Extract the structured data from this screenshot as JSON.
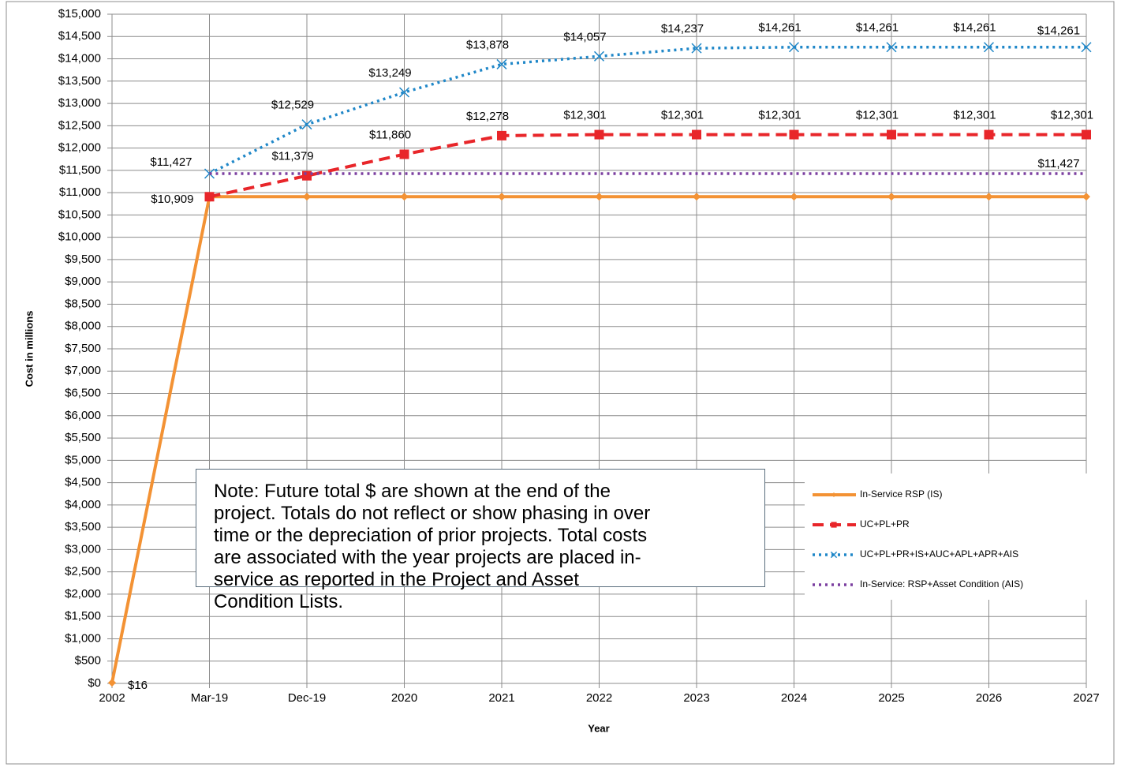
{
  "chart_data": {
    "type": "line",
    "y_label": "Cost in millions",
    "x_label": "Year",
    "categories": [
      "2002",
      "Mar-19",
      "Dec-19",
      "2020",
      "2021",
      "2022",
      "2023",
      "2024",
      "2025",
      "2026",
      "2027"
    ],
    "ylim": [
      0,
      15000
    ],
    "yticks": [
      {
        "value": 0,
        "label": "$0"
      },
      {
        "value": 500,
        "label": "$500"
      },
      {
        "value": 1000,
        "label": "$1,000"
      },
      {
        "value": 1500,
        "label": "$1,500"
      },
      {
        "value": 2000,
        "label": "$2,000"
      },
      {
        "value": 2500,
        "label": "$2,500"
      },
      {
        "value": 3000,
        "label": "$3,000"
      },
      {
        "value": 3500,
        "label": "$3,500"
      },
      {
        "value": 4000,
        "label": "$4,000"
      },
      {
        "value": 4500,
        "label": "$4,500"
      },
      {
        "value": 5000,
        "label": "$5,000"
      },
      {
        "value": 5500,
        "label": "$5,500"
      },
      {
        "value": 6000,
        "label": "$6,000"
      },
      {
        "value": 6500,
        "label": "$6,500"
      },
      {
        "value": 7000,
        "label": "$7,000"
      },
      {
        "value": 7500,
        "label": "$7,500"
      },
      {
        "value": 8000,
        "label": "$8,000"
      },
      {
        "value": 8500,
        "label": "$8,500"
      },
      {
        "value": 9000,
        "label": "$9,000"
      },
      {
        "value": 9500,
        "label": "$9,500"
      },
      {
        "value": 10000,
        "label": "$10,000"
      },
      {
        "value": 10500,
        "label": "$10,500"
      },
      {
        "value": 11000,
        "label": "$11,000"
      },
      {
        "value": 11500,
        "label": "$11,500"
      },
      {
        "value": 12000,
        "label": "$12,000"
      },
      {
        "value": 12500,
        "label": "$12,500"
      },
      {
        "value": 13000,
        "label": "$13,000"
      },
      {
        "value": 13500,
        "label": "$13,500"
      },
      {
        "value": 14000,
        "label": "$14,000"
      },
      {
        "value": 14500,
        "label": "$14,500"
      },
      {
        "value": 15000,
        "label": "$15,000"
      }
    ],
    "grid": true,
    "legend": "right",
    "series": [
      {
        "name": "In-Service RSP (IS)",
        "color": "#f39234",
        "style": "solid",
        "marker": "diamond",
        "values": [
          16,
          10909,
          10909,
          10909,
          10909,
          10909,
          10909,
          10909,
          10909,
          10909,
          10909
        ],
        "value_labels": [
          "$16",
          "$10,909",
          null,
          null,
          null,
          null,
          null,
          null,
          null,
          null,
          null
        ]
      },
      {
        "name": "UC+PL+PR",
        "color": "#e8262a",
        "style": "dashed",
        "marker": "square",
        "values": [
          null,
          10909,
          11379,
          11860,
          12278,
          12301,
          12301,
          12301,
          12301,
          12301,
          12301
        ],
        "value_labels": [
          null,
          null,
          "$11,379",
          "$11,860",
          "$12,278",
          "$12,301",
          "$12,301",
          "$12,301",
          "$12,301",
          "$12,301",
          "$12,301"
        ]
      },
      {
        "name": "UC+PL+PR+IS+AUC+APL+APR+AIS",
        "color": "#1f87c8",
        "style": "dotted",
        "marker": "x",
        "values": [
          null,
          11427,
          12529,
          13249,
          13878,
          14057,
          14237,
          14261,
          14261,
          14261,
          14261
        ],
        "value_labels": [
          null,
          "$11,427",
          "$12,529",
          "$13,249",
          "$13,878",
          "$14,057",
          "$14,237",
          "$14,261",
          "$14,261",
          "$14,261",
          "$14,261"
        ]
      },
      {
        "name": "In-Service: RSP+Asset Condition (AIS)",
        "color": "#7b3fa0",
        "style": "dotted",
        "marker": "none",
        "values": [
          null,
          11427,
          11427,
          11427,
          11427,
          11427,
          11427,
          11427,
          11427,
          11427,
          11427
        ],
        "value_labels": [
          null,
          null,
          null,
          null,
          null,
          null,
          null,
          null,
          null,
          null,
          "$11,427"
        ]
      }
    ],
    "note_lines": [
      "Note: Future total $ are shown at the end of the",
      "project. Totals do not reflect or show phasing in over",
      "time or the depreciation of prior projects. Total costs",
      "are associated with the year projects are placed in-",
      "service as reported in the Project and Asset",
      "Condition Lists."
    ]
  }
}
